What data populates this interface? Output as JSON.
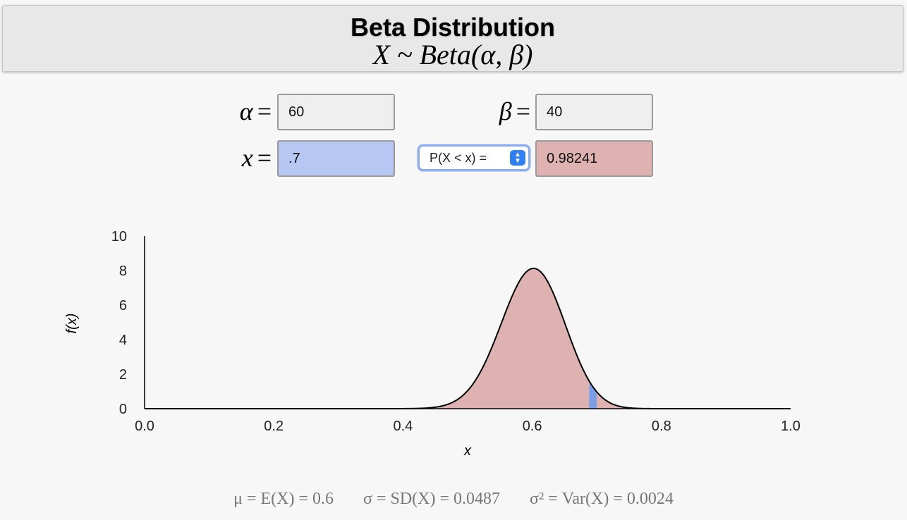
{
  "header": {
    "title": "Beta Distribution",
    "subtitle": "X ~ Beta(α, β)"
  },
  "inputs": {
    "alpha_label": "α",
    "alpha_value": "60",
    "beta_label": "β",
    "beta_value": "40",
    "x_label": "x",
    "x_value": ".7",
    "equals": "=",
    "prob_select": "P(X < x) =",
    "result_value": "0.98241"
  },
  "chart_data": {
    "type": "area",
    "distribution": "beta",
    "alpha": 60,
    "beta": 40,
    "x_cutoff": 0.7,
    "xlabel": "x",
    "ylabel": "f(x)",
    "xlim": [
      0.0,
      1.0
    ],
    "ylim": [
      0,
      10
    ],
    "xticks": [
      "0.0",
      "0.2",
      "0.4",
      "0.6",
      "0.8",
      "1.0"
    ],
    "yticks": [
      "0",
      "2",
      "4",
      "6",
      "8",
      "10"
    ],
    "fill_color": "#dfb2b2",
    "highlight_color": "#7c9ee6",
    "curve_color": "#000000",
    "peak_value": 8.1
  },
  "stats": {
    "mean": "μ = E(X) = 0.6",
    "sd": "σ = SD(X) = 0.0487",
    "var": "σ² = Var(X) = 0.0024"
  },
  "colors": {
    "x_field": "#b5c7f2",
    "result_field": "#dfb2b2",
    "param_field": "#efefef",
    "select_accent": "#2f7ff5"
  }
}
